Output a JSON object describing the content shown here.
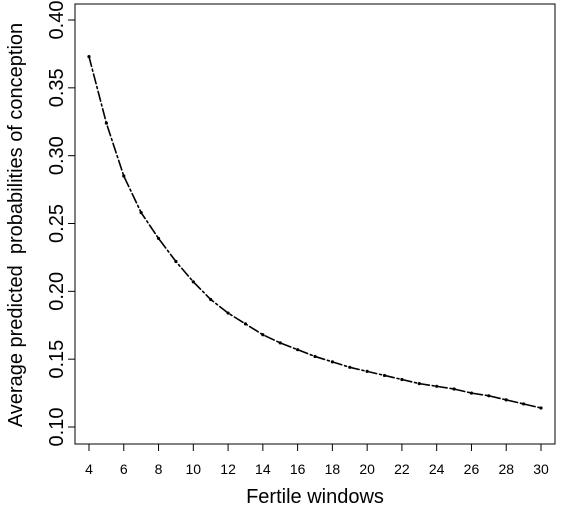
{
  "chart_data": {
    "type": "line",
    "title": "",
    "xlabel": "Fertile windows",
    "ylabel": "Average predicted  probabilities of conception",
    "xlim": [
      4,
      30
    ],
    "ylim": [
      0.1,
      0.4
    ],
    "x_ticks": [
      4,
      6,
      8,
      10,
      12,
      14,
      16,
      18,
      20,
      22,
      24,
      26,
      28,
      30
    ],
    "y_ticks": [
      "0.10",
      "0.15",
      "0.20",
      "0.25",
      "0.30",
      "0.35",
      "0.40"
    ],
    "grid": false,
    "legend": "none",
    "line_style": "dash-dot",
    "color": "#000000",
    "series": [
      {
        "x": [
          4,
          5,
          6,
          7,
          8,
          9,
          10,
          11,
          12,
          13,
          14,
          15,
          16,
          17,
          18,
          19,
          20,
          21,
          22,
          23,
          24,
          25,
          26,
          27,
          28,
          29,
          30
        ],
        "values": [
          0.373,
          0.324,
          0.285,
          0.258,
          0.239,
          0.222,
          0.207,
          0.194,
          0.184,
          0.176,
          0.168,
          0.162,
          0.157,
          0.152,
          0.148,
          0.144,
          0.141,
          0.138,
          0.135,
          0.132,
          0.13,
          0.128,
          0.125,
          0.123,
          0.12,
          0.117,
          0.114
        ]
      }
    ]
  }
}
